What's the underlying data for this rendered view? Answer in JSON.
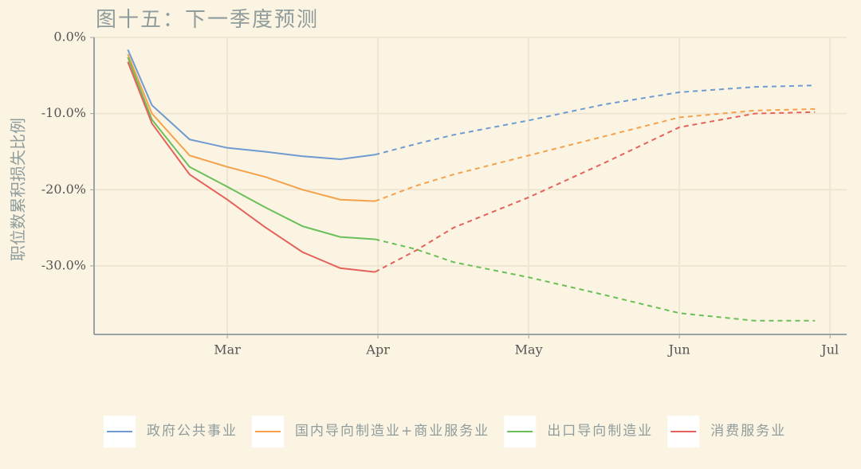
{
  "chart_data": {
    "type": "line",
    "title": "图十五：下一季度预测",
    "y_label": "职位数累积损失比例",
    "x": [
      2.34,
      2.5,
      2.75,
      3.0,
      3.25,
      3.5,
      3.75,
      3.98,
      4.25,
      4.5,
      5.0,
      5.5,
      6.0,
      6.5,
      6.9
    ],
    "xlim": [
      2.116,
      7.11
    ],
    "xticks": [
      {
        "value": 3,
        "label": "Mar"
      },
      {
        "value": 4,
        "label": "Apr"
      },
      {
        "value": 5,
        "label": "May"
      },
      {
        "value": 6,
        "label": "Jun"
      },
      {
        "value": 7,
        "label": "Jul"
      }
    ],
    "ylim": [
      -39,
      0
    ],
    "yticks": [
      {
        "value": 0,
        "label": "0.0%"
      },
      {
        "value": -10,
        "label": "-10.0%"
      },
      {
        "value": -20,
        "label": "-20.0%"
      },
      {
        "value": -30,
        "label": "-30.0%"
      }
    ],
    "grid": true,
    "legend": "bottom",
    "series": [
      {
        "name": "政府公共事业",
        "color": "#6f9bd1",
        "values": [
          -1.6,
          -8.9,
          -13.4,
          -14.5,
          -15.0,
          -15.6,
          -16.0,
          -15.4,
          null,
          null,
          null,
          null,
          null,
          null,
          null
        ],
        "forecast": [
          null,
          null,
          null,
          null,
          null,
          null,
          null,
          -15.4,
          -14.0,
          -12.8,
          -10.9,
          -8.8,
          -7.2,
          -6.5,
          -6.3
        ]
      },
      {
        "name": "国内导向制造业+商业服务业",
        "color": "#f5a14a",
        "values": [
          -2.2,
          -10.0,
          -15.5,
          -17.0,
          -18.3,
          -20.0,
          -21.3,
          -21.5,
          null,
          null,
          null,
          null,
          null,
          null,
          null
        ],
        "forecast": [
          null,
          null,
          null,
          null,
          null,
          null,
          null,
          -21.5,
          -19.5,
          -18.0,
          -15.5,
          -13.0,
          -10.5,
          -9.6,
          -9.4
        ]
      },
      {
        "name": "出口导向制造业",
        "color": "#6abf59",
        "values": [
          -2.6,
          -10.8,
          -17.0,
          -19.6,
          -22.3,
          -24.8,
          -26.2,
          -26.5,
          null,
          null,
          null,
          null,
          null,
          null,
          null
        ],
        "forecast": [
          null,
          null,
          null,
          null,
          null,
          null,
          null,
          -26.5,
          -27.8,
          -29.5,
          -31.5,
          -33.8,
          -36.2,
          -37.2,
          -37.2
        ]
      },
      {
        "name": "消费服务业",
        "color": "#e4625a",
        "values": [
          -3.2,
          -11.3,
          -18.0,
          -21.3,
          -24.9,
          -28.2,
          -30.3,
          -30.8,
          null,
          null,
          null,
          null,
          null,
          null,
          null
        ],
        "forecast": [
          null,
          null,
          null,
          null,
          null,
          null,
          null,
          -30.8,
          -28.0,
          -25.0,
          -21.0,
          -16.5,
          -11.8,
          -10.0,
          -9.8
        ]
      }
    ]
  }
}
